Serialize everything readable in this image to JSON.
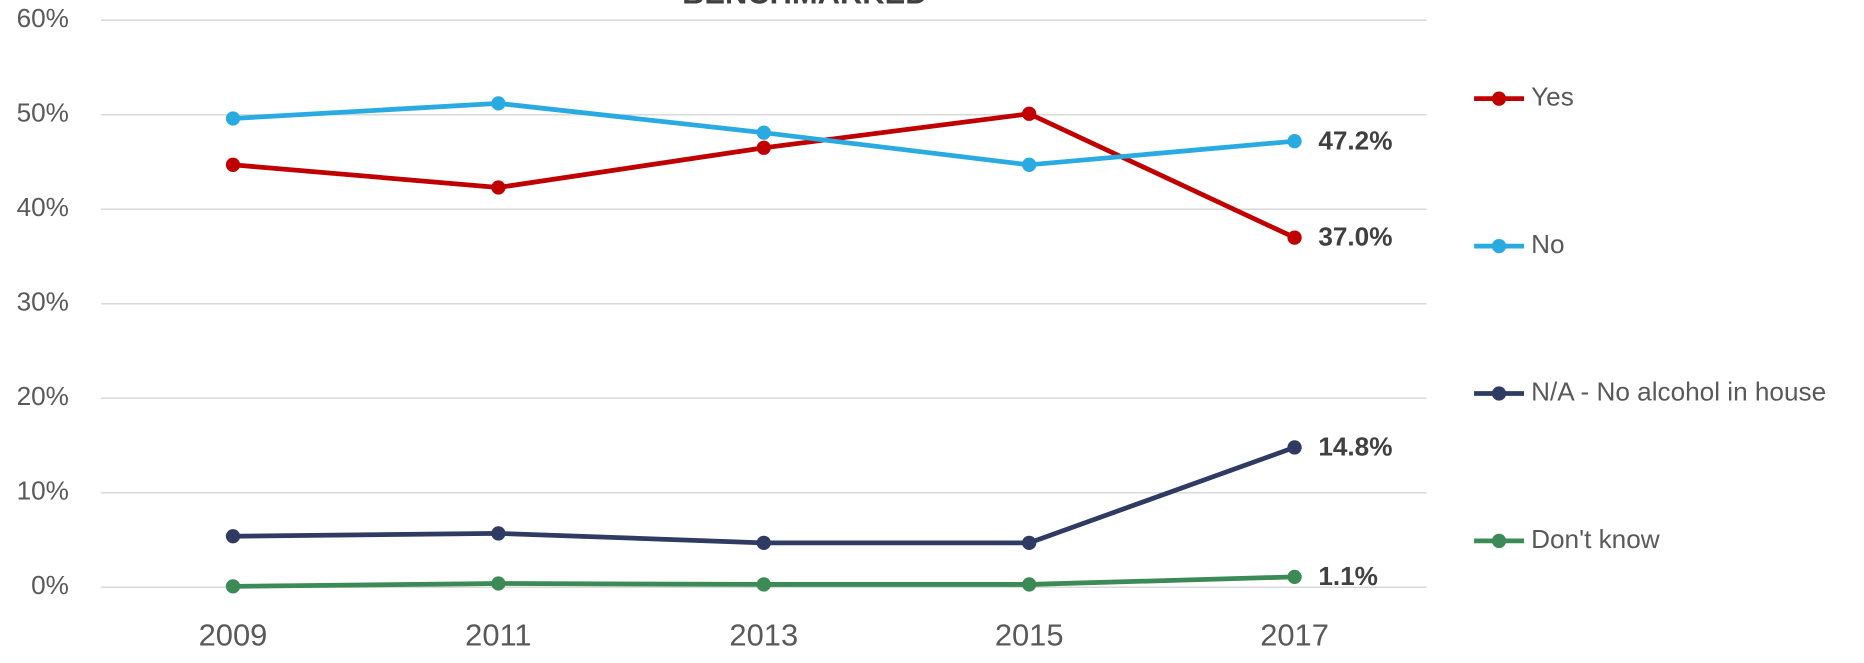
{
  "chart_data": {
    "type": "line",
    "title": "BENCHMARKED",
    "categories": [
      "2009",
      "2011",
      "2013",
      "2015",
      "2017"
    ],
    "series": [
      {
        "name": "Yes",
        "color": "#c00000",
        "values": [
          44.7,
          42.3,
          46.5,
          50.1,
          37.0
        ],
        "value_labels": [
          null,
          null,
          null,
          null,
          "37.0%"
        ]
      },
      {
        "name": "No",
        "color": "#29abe2",
        "values": [
          49.6,
          51.2,
          48.1,
          44.7,
          47.2
        ],
        "value_labels": [
          null,
          null,
          null,
          null,
          "47.2%"
        ]
      },
      {
        "name": "N/A - No alcohol in house",
        "color": "#2f3b63",
        "values": [
          5.4,
          5.7,
          4.7,
          4.7,
          14.8
        ],
        "value_labels": [
          null,
          null,
          null,
          null,
          "14.8%"
        ]
      },
      {
        "name": "Don't know",
        "color": "#3c8a55",
        "values": [
          0.1,
          0.4,
          0.3,
          0.3,
          1.1
        ],
        "value_labels": [
          null,
          null,
          null,
          null,
          "1.1%"
        ]
      }
    ],
    "ylim": [
      0,
      60
    ],
    "yticks": [
      {
        "value": 0,
        "label": "0%"
      },
      {
        "value": 10,
        "label": "10%"
      },
      {
        "value": 20,
        "label": "20%"
      },
      {
        "value": 30,
        "label": "30%"
      },
      {
        "value": 40,
        "label": "40%"
      },
      {
        "value": 50,
        "label": "50%"
      },
      {
        "value": 60,
        "label": "60%"
      }
    ],
    "grid": true,
    "legend": "right"
  }
}
